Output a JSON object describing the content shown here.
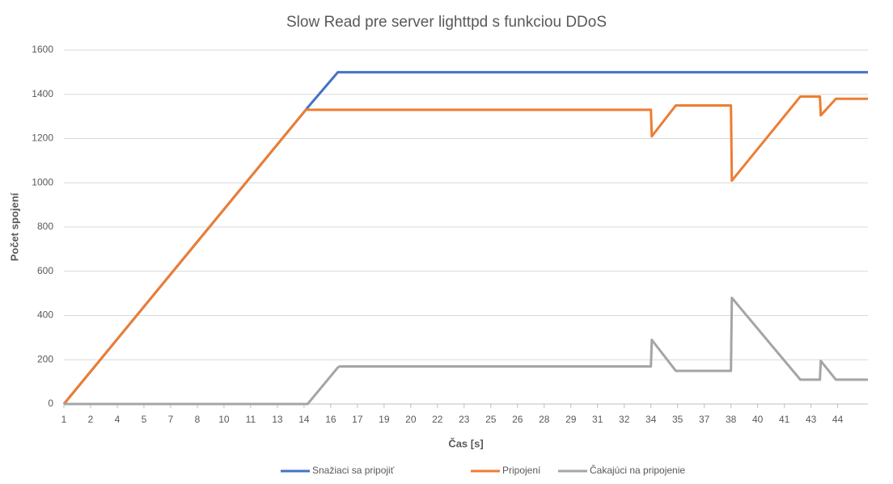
{
  "chart_data": {
    "type": "line",
    "title": "Slow Read pre server lighttpd s funkciou DDoS",
    "x_label": "Čas [s]",
    "y_label": "Počet spojení",
    "x": [
      1,
      14.6,
      14.7,
      16.4,
      16.5,
      34,
      34.05,
      35.4,
      38.5,
      38.55,
      42.4,
      43.5,
      43.55,
      44.4,
      46.2
    ],
    "series": [
      {
        "name": "Snažiaci sa pripojiť",
        "color": "#4472c4",
        "values": [
          0,
          1330,
          1340,
          1500,
          1500,
          1500,
          1500,
          1500,
          1500,
          1500,
          1500,
          1500,
          1500,
          1500,
          1500
        ]
      },
      {
        "name": "Pripojení",
        "color": "#ed7d31",
        "values": [
          0,
          1330,
          1330,
          1330,
          1330,
          1330,
          1210,
          1350,
          1350,
          1010,
          1390,
          1390,
          1305,
          1380,
          1380
        ]
      },
      {
        "name": "Čakajúci na pripojenie",
        "color": "#a5a5a5",
        "values": [
          0,
          0,
          0,
          165,
          170,
          170,
          290,
          150,
          150,
          480,
          110,
          110,
          195,
          110,
          110
        ]
      }
    ],
    "xlim": [
      1,
      46.2
    ],
    "xticks": [
      1,
      {
        "value": 2.5,
        "label": "2"
      },
      4,
      {
        "value": 5.5,
        "label": "5"
      },
      7,
      {
        "value": 8.5,
        "label": "8"
      },
      10,
      {
        "value": 11.5,
        "label": "11"
      },
      13,
      {
        "value": 14.5,
        "label": "14"
      },
      16,
      {
        "value": 17.5,
        "label": "17"
      },
      19,
      {
        "value": 20.5,
        "label": "20"
      },
      22,
      {
        "value": 23.5,
        "label": "23"
      },
      25,
      {
        "value": 26.5,
        "label": "26"
      },
      28,
      {
        "value": 29.5,
        "label": "29"
      },
      31,
      {
        "value": 32.5,
        "label": "32"
      },
      34,
      {
        "value": 35.5,
        "label": "35"
      },
      37,
      {
        "value": 38.5,
        "label": "38"
      },
      40,
      {
        "value": 41.5,
        "label": "41"
      },
      43,
      {
        "value": 44.5,
        "label": "44"
      }
    ],
    "ylim": [
      0,
      1600
    ],
    "yticks": [
      0,
      200,
      400,
      600,
      800,
      1000,
      1200,
      1400,
      1600
    ],
    "grid": true,
    "legend": "bottom"
  }
}
